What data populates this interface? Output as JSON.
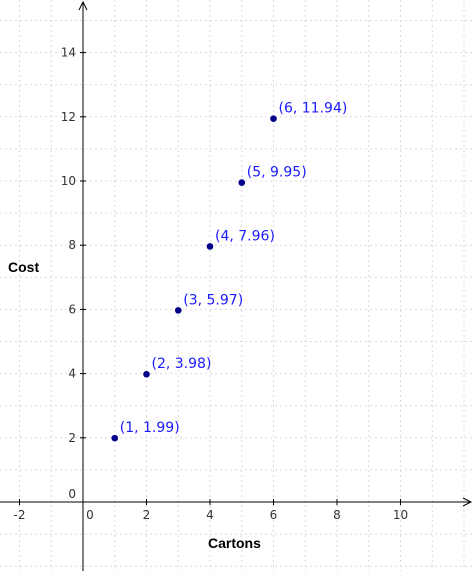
{
  "chart_data": {
    "type": "scatter",
    "title": "",
    "xlabel": "Cartons",
    "ylabel": "Cost",
    "xlim": [
      -2.5,
      12
    ],
    "ylim": [
      -2,
      15.5
    ],
    "x_ticks": [
      -2,
      0,
      2,
      4,
      6,
      8,
      10
    ],
    "y_ticks": [
      0,
      2,
      4,
      6,
      8,
      10,
      12,
      14
    ],
    "grid": true,
    "series": [
      {
        "points": [
          {
            "x": 1,
            "y": 1.99,
            "label": "(1, 1.99)"
          },
          {
            "x": 2,
            "y": 3.98,
            "label": "(2, 3.98)"
          },
          {
            "x": 3,
            "y": 5.97,
            "label": "(3, 5.97)"
          },
          {
            "x": 4,
            "y": 7.96,
            "label": "(4, 7.96)"
          },
          {
            "x": 5,
            "y": 9.95,
            "label": "(5, 9.95)"
          },
          {
            "x": 6,
            "y": 11.94,
            "label": "(6, 11.94)"
          }
        ]
      }
    ],
    "colors": {
      "point": "#00008b",
      "label": "#1a1aff",
      "grid": "#d9d9d9",
      "axis": "#000000"
    }
  }
}
